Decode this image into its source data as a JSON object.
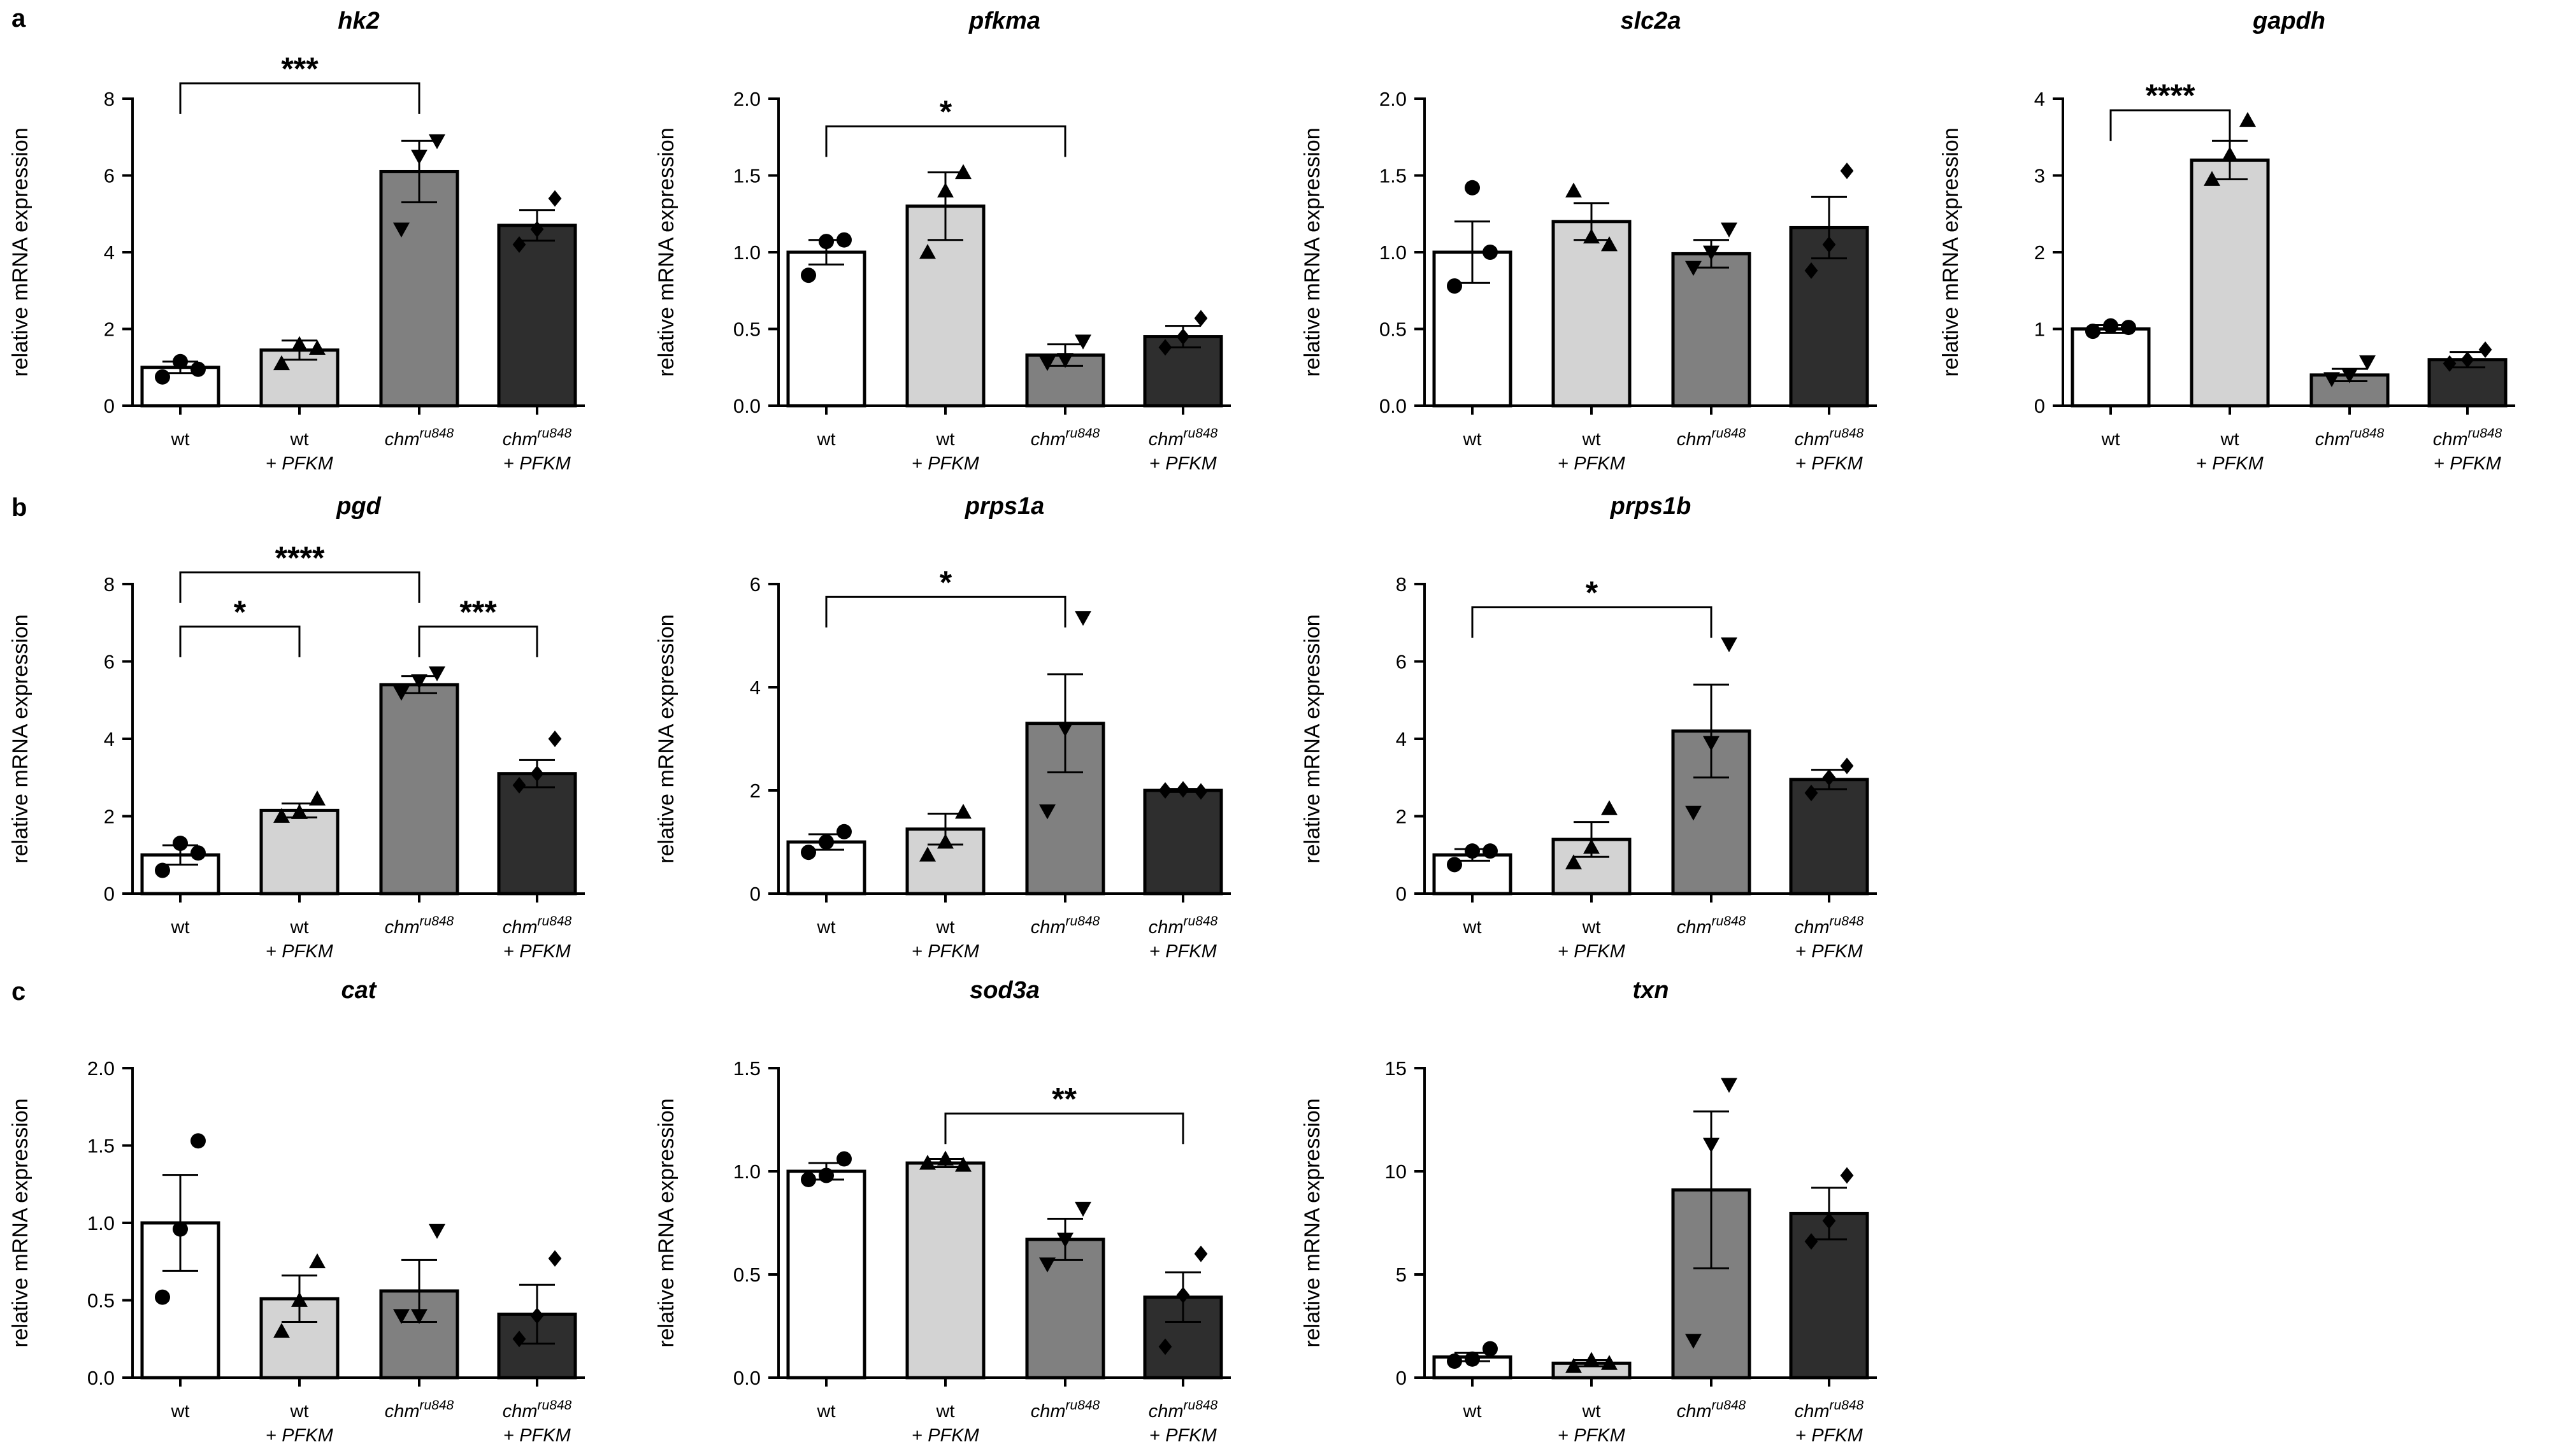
{
  "figure": {
    "panel_letters": [
      "a",
      "b",
      "c"
    ],
    "y_axis_label": "relative mRNA expression",
    "group_labels": [
      {
        "line1": "wt",
        "line2": ""
      },
      {
        "line1": "wt",
        "line2": "+ PFKM"
      },
      {
        "line1": "chm",
        "sup": "ru848",
        "line2": ""
      },
      {
        "line1": "chm",
        "sup": "ru848",
        "line2": "+ PFKM"
      }
    ],
    "bar_colors": [
      "#ffffff",
      "#d3d3d3",
      "#808080",
      "#2e2e2e"
    ]
  },
  "chart_data": [
    {
      "type": "bar",
      "panel": "a",
      "title": "hk2",
      "ylabel": "relative mRNA expression",
      "categories": [
        "wt",
        "wt + PFKM",
        "chm ru848",
        "chm ru848 + PFKM"
      ],
      "values": [
        1.0,
        1.45,
        6.1,
        4.7
      ],
      "sem": [
        0.15,
        0.25,
        0.8,
        0.4
      ],
      "points": [
        [
          0.75,
          1.15,
          0.95
        ],
        [
          1.1,
          1.6,
          1.5
        ],
        [
          4.6,
          6.5,
          6.9
        ],
        [
          4.2,
          4.6,
          5.4
        ]
      ],
      "ylim": [
        0,
        8
      ],
      "yticks": [
        "0",
        "2",
        "4",
        "6",
        "8"
      ],
      "significance": [
        {
          "from": 0,
          "to": 2,
          "label": "***",
          "y": 8.4
        }
      ]
    },
    {
      "type": "bar",
      "panel": "a",
      "title": "pfkma",
      "ylabel": "relative mRNA expression",
      "categories": [
        "wt",
        "wt + PFKM",
        "chm ru848",
        "chm ru848 + PFKM"
      ],
      "values": [
        1.0,
        1.3,
        0.33,
        0.45
      ],
      "sem": [
        0.08,
        0.22,
        0.07,
        0.07
      ],
      "points": [
        [
          0.85,
          1.07,
          1.08
        ],
        [
          1.0,
          1.4,
          1.52
        ],
        [
          0.28,
          0.3,
          0.42
        ],
        [
          0.38,
          0.45,
          0.57
        ]
      ],
      "ylim": [
        0,
        2.0
      ],
      "yticks": [
        "0.0",
        "0.5",
        "1.0",
        "1.5",
        "2.0"
      ],
      "significance": [
        {
          "from": 0,
          "to": 2,
          "label": "*",
          "y": 1.82
        }
      ]
    },
    {
      "type": "bar",
      "panel": "a",
      "title": "slc2a",
      "ylabel": "relative mRNA expression",
      "categories": [
        "wt",
        "wt + PFKM",
        "chm ru848",
        "chm ru848 + PFKM"
      ],
      "values": [
        1.0,
        1.2,
        0.99,
        1.16
      ],
      "sem": [
        0.2,
        0.12,
        0.09,
        0.2
      ],
      "points": [
        [
          0.78,
          1.42,
          1.0
        ],
        [
          1.4,
          1.1,
          1.05
        ],
        [
          0.9,
          1.0,
          1.15
        ],
        [
          0.88,
          1.05,
          1.53
        ]
      ],
      "ylim": [
        0,
        2.0
      ],
      "yticks": [
        "0.0",
        "0.5",
        "1.0",
        "1.5",
        "2.0"
      ],
      "significance": []
    },
    {
      "type": "bar",
      "panel": "a",
      "title": "gapdh",
      "ylabel": "relative mRNA expression",
      "categories": [
        "wt",
        "wt + PFKM",
        "chm ru848",
        "chm ru848 + PFKM"
      ],
      "values": [
        1.0,
        3.2,
        0.4,
        0.6
      ],
      "sem": [
        0.05,
        0.25,
        0.08,
        0.1
      ],
      "points": [
        [
          0.97,
          1.04,
          1.02
        ],
        [
          2.95,
          3.27,
          3.72
        ],
        [
          0.35,
          0.4,
          0.57
        ],
        [
          0.55,
          0.6,
          0.73
        ]
      ],
      "ylim": [
        0,
        4
      ],
      "yticks": [
        "0",
        "1",
        "2",
        "3",
        "4"
      ],
      "significance": [
        {
          "from": 0,
          "to": 1,
          "label": "****",
          "y": 3.85
        }
      ]
    },
    {
      "type": "bar",
      "panel": "b",
      "title": "pgd",
      "ylabel": "relative mRNA expression",
      "categories": [
        "wt",
        "wt + PFKM",
        "chm ru848",
        "chm ru848 + PFKM"
      ],
      "values": [
        1.0,
        2.15,
        5.4,
        3.1
      ],
      "sem": [
        0.25,
        0.18,
        0.22,
        0.35
      ],
      "points": [
        [
          0.6,
          1.3,
          1.05
        ],
        [
          2.0,
          2.1,
          2.45
        ],
        [
          5.2,
          5.5,
          5.7
        ],
        [
          2.8,
          3.1,
          4.0
        ]
      ],
      "ylim": [
        0,
        8
      ],
      "yticks": [
        "0",
        "2",
        "4",
        "6",
        "8"
      ],
      "significance": [
        {
          "from": 0,
          "to": 2,
          "label": "****",
          "y": 8.3
        },
        {
          "from": 0,
          "to": 1,
          "label": "*",
          "y": 6.9
        },
        {
          "from": 2,
          "to": 3,
          "label": "***",
          "y": 6.9
        }
      ]
    },
    {
      "type": "bar",
      "panel": "b",
      "title": "prps1a",
      "ylabel": "relative mRNA expression",
      "categories": [
        "wt",
        "wt + PFKM",
        "chm ru848",
        "chm ru848 + PFKM"
      ],
      "values": [
        1.0,
        1.25,
        3.3,
        2.0
      ],
      "sem": [
        0.15,
        0.3,
        0.95,
        0.03
      ],
      "points": [
        [
          0.8,
          1.0,
          1.2
        ],
        [
          0.75,
          1.0,
          1.58
        ],
        [
          1.6,
          3.2,
          5.35
        ],
        [
          2.0,
          2.02,
          1.98
        ]
      ],
      "ylim": [
        0,
        6
      ],
      "yticks": [
        "0",
        "2",
        "4",
        "6"
      ],
      "significance": [
        {
          "from": 0,
          "to": 2,
          "label": "*",
          "y": 5.75
        }
      ]
    },
    {
      "type": "bar",
      "panel": "b",
      "title": "prps1b",
      "ylabel": "relative mRNA expression",
      "categories": [
        "wt",
        "wt + PFKM",
        "chm ru848",
        "chm ru848 + PFKM"
      ],
      "values": [
        1.0,
        1.4,
        4.2,
        2.95
      ],
      "sem": [
        0.15,
        0.45,
        1.2,
        0.25
      ],
      "points": [
        [
          0.75,
          1.1,
          1.1
        ],
        [
          0.8,
          1.2,
          2.2
        ],
        [
          2.1,
          3.9,
          6.45
        ],
        [
          2.6,
          3.0,
          3.3
        ]
      ],
      "ylim": [
        0,
        8
      ],
      "yticks": [
        "0",
        "2",
        "4",
        "6",
        "8"
      ],
      "significance": [
        {
          "from": 0,
          "to": 2,
          "label": "*",
          "y": 7.4
        }
      ]
    },
    {
      "type": "bar",
      "panel": "c",
      "title": "cat",
      "ylabel": "relative mRNA expression",
      "categories": [
        "wt",
        "wt + PFKM",
        "chm ru848",
        "chm ru848 + PFKM"
      ],
      "values": [
        1.0,
        0.51,
        0.56,
        0.41
      ],
      "sem": [
        0.31,
        0.15,
        0.2,
        0.19
      ],
      "points": [
        [
          0.52,
          0.96,
          1.53
        ],
        [
          0.3,
          0.5,
          0.75
        ],
        [
          0.4,
          0.4,
          0.95
        ],
        [
          0.25,
          0.4,
          0.77
        ]
      ],
      "ylim": [
        0,
        2.0
      ],
      "yticks": [
        "0.0",
        "0.5",
        "1.0",
        "1.5",
        "2.0"
      ],
      "significance": []
    },
    {
      "type": "bar",
      "panel": "c",
      "title": "sod3a",
      "ylabel": "relative mRNA expression",
      "categories": [
        "wt",
        "wt + PFKM",
        "chm ru848",
        "chm ru848 + PFKM"
      ],
      "values": [
        1.0,
        1.04,
        0.67,
        0.39
      ],
      "sem": [
        0.04,
        0.02,
        0.1,
        0.12
      ],
      "points": [
        [
          0.96,
          0.98,
          1.06
        ],
        [
          1.04,
          1.06,
          1.03
        ],
        [
          0.55,
          0.67,
          0.82
        ],
        [
          0.15,
          0.4,
          0.6
        ]
      ],
      "ylim": [
        0,
        1.5
      ],
      "yticks": [
        "0.0",
        "0.5",
        "1.0",
        "1.5"
      ],
      "significance": [
        {
          "from": 1,
          "to": 3,
          "label": "**",
          "y": 1.28
        }
      ]
    },
    {
      "type": "bar",
      "panel": "c",
      "title": "txn",
      "ylabel": "relative mRNA expression",
      "categories": [
        "wt",
        "wt + PFKM",
        "chm ru848",
        "chm ru848 + PFKM"
      ],
      "values": [
        1.0,
        0.7,
        9.1,
        7.95
      ],
      "sem": [
        0.2,
        0.15,
        3.8,
        1.25
      ],
      "points": [
        [
          0.8,
          0.9,
          1.4
        ],
        [
          0.55,
          0.85,
          0.7
        ],
        [
          1.8,
          11.3,
          14.2
        ],
        [
          6.6,
          7.6,
          9.8
        ]
      ],
      "ylim": [
        0,
        15
      ],
      "yticks": [
        "0",
        "5",
        "10",
        "15"
      ],
      "significance": []
    }
  ]
}
